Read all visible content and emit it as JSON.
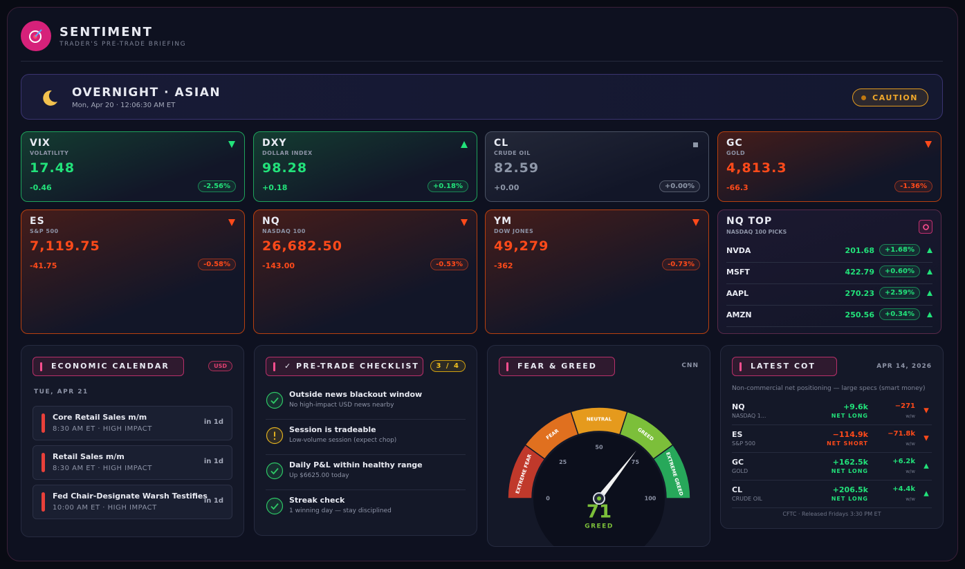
{
  "header": {
    "title": "SENTIMENT",
    "subtitle": "TRADER'S PRE-TRADE BRIEFING"
  },
  "session": {
    "title": "OVERNIGHT · ASIAN",
    "datetime": "Mon, Apr 20 · 12:06:30 AM ET",
    "badge": "CAUTION"
  },
  "tickers": [
    {
      "symbol": "VIX",
      "name": "VOLATILITY",
      "price": "17.48",
      "change": "-0.46",
      "pct": "-2.56%",
      "dir": "down",
      "tone": "up"
    },
    {
      "symbol": "DXY",
      "name": "DOLLAR INDEX",
      "price": "98.28",
      "change": "+0.18",
      "pct": "+0.18%",
      "dir": "up",
      "tone": "up"
    },
    {
      "symbol": "CL",
      "name": "CRUDE OIL",
      "price": "82.59",
      "change": "+0.00",
      "pct": "+0.00%",
      "dir": "flat",
      "tone": "flat"
    },
    {
      "symbol": "GC",
      "name": "GOLD",
      "price": "4,813.3",
      "change": "-66.3",
      "pct": "-1.36%",
      "dir": "down",
      "tone": "down"
    },
    {
      "symbol": "ES",
      "name": "S&P 500",
      "price": "7,119.75",
      "change": "-41.75",
      "pct": "-0.58%",
      "dir": "down",
      "tone": "down"
    },
    {
      "symbol": "NQ",
      "name": "NASDAQ 100",
      "price": "26,682.50",
      "change": "-143.00",
      "pct": "-0.53%",
      "dir": "down",
      "tone": "down"
    },
    {
      "symbol": "YM",
      "name": "DOW JONES",
      "price": "49,279",
      "change": "-362",
      "pct": "-0.73%",
      "dir": "down",
      "tone": "down"
    }
  ],
  "nq_top": {
    "title": "NQ TOP",
    "subtitle": "NASDAQ 100 PICKS",
    "rows": [
      {
        "symbol": "NVDA",
        "price": "201.68",
        "pct": "+1.68%"
      },
      {
        "symbol": "MSFT",
        "price": "422.79",
        "pct": "+0.60%"
      },
      {
        "symbol": "AAPL",
        "price": "270.23",
        "pct": "+2.59%"
      },
      {
        "symbol": "AMZN",
        "price": "250.56",
        "pct": "+0.34%"
      }
    ]
  },
  "calendar": {
    "title": "ECONOMIC CALENDAR",
    "badge": "USD",
    "date": "TUE, APR 21",
    "events": [
      {
        "name": "Core Retail Sales m/m",
        "detail": "8:30 AM ET · HIGH IMPACT",
        "when": "in 1d"
      },
      {
        "name": "Retail Sales m/m",
        "detail": "8:30 AM ET · HIGH IMPACT",
        "when": "in 1d"
      },
      {
        "name": "Fed Chair-Designate Warsh Testifies",
        "detail": "10:00 AM ET · HIGH IMPACT",
        "when": "in 1d"
      }
    ]
  },
  "checklist": {
    "title": "✓ PRE-TRADE CHECKLIST",
    "badge": "3 / 4",
    "items": [
      {
        "title": "Outside news blackout window",
        "detail": "No high-impact USD news nearby",
        "status": "ok"
      },
      {
        "title": "Session is tradeable",
        "detail": "Low-volume session (expect chop)",
        "status": "warn"
      },
      {
        "title": "Daily P&L within healthy range",
        "detail": "Up $6625.00 today",
        "status": "ok"
      },
      {
        "title": "Streak check",
        "detail": "1 winning day — stay disciplined",
        "status": "ok"
      }
    ]
  },
  "fear_greed": {
    "title": "FEAR & GREED",
    "source": "CNN",
    "value": 71,
    "label": "GREED",
    "range": [
      0,
      100
    ],
    "ticks": [
      0,
      25,
      50,
      75,
      100
    ],
    "zones": [
      {
        "label": "EXTREME FEAR",
        "color": "#c0392b"
      },
      {
        "label": "FEAR",
        "color": "#e0701f"
      },
      {
        "label": "NEUTRAL",
        "color": "#e59a1d"
      },
      {
        "label": "GREED",
        "color": "#7cbf3a"
      },
      {
        "label": "EXTREME GREED",
        "color": "#27a85a"
      }
    ]
  },
  "cot": {
    "title": "LATEST COT",
    "date": "APR 14, 2026",
    "note": "Non-commercial net positioning — large specs (smart money)",
    "unit": "w/w",
    "footer": "CFTC · Released Fridays 3:30 PM ET",
    "rows": [
      {
        "symbol": "NQ",
        "name": "NASDAQ 1...",
        "net": "+9.6k",
        "position": "NET LONG",
        "change": "−271",
        "change_dir": "down"
      },
      {
        "symbol": "ES",
        "name": "S&P 500",
        "net": "−114.9k",
        "position": "NET SHORT",
        "change": "−71.8k",
        "change_dir": "down"
      },
      {
        "symbol": "GC",
        "name": "GOLD",
        "net": "+162.5k",
        "position": "NET LONG",
        "change": "+6.2k",
        "change_dir": "up"
      },
      {
        "symbol": "CL",
        "name": "CRUDE OIL",
        "net": "+206.5k",
        "position": "NET LONG",
        "change": "+4.4k",
        "change_dir": "up"
      }
    ]
  }
}
